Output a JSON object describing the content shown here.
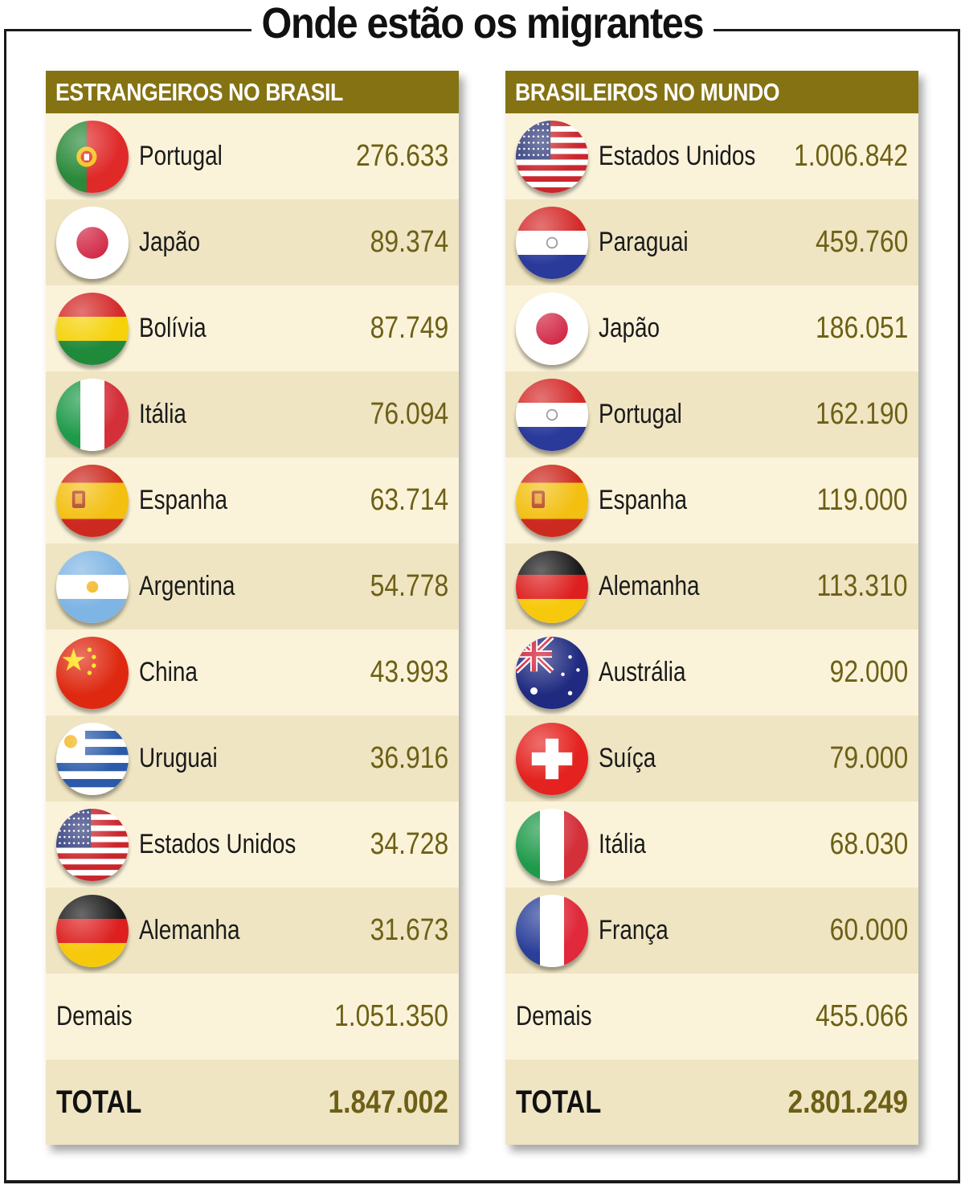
{
  "title": "Onde estão os migrantes",
  "left": {
    "header": "ESTRANGEIROS NO BRASIL",
    "rows": [
      {
        "country": "Portugal",
        "value": "276.633",
        "flag": "portugal-flag-icon"
      },
      {
        "country": "Japão",
        "value": "89.374",
        "flag": "japan-flag-icon"
      },
      {
        "country": "Bolívia",
        "value": "87.749",
        "flag": "bolivia-flag-icon"
      },
      {
        "country": "Itália",
        "value": "76.094",
        "flag": "italy-flag-icon"
      },
      {
        "country": "Espanha",
        "value": "63.714",
        "flag": "spain-flag-icon"
      },
      {
        "country": "Argentina",
        "value": "54.778",
        "flag": "argentina-flag-icon"
      },
      {
        "country": "China",
        "value": "43.993",
        "flag": "china-flag-icon"
      },
      {
        "country": "Uruguai",
        "value": "36.916",
        "flag": "uruguay-flag-icon"
      },
      {
        "country": "Estados Unidos",
        "value": "34.728",
        "flag": "usa-flag-icon"
      },
      {
        "country": "Alemanha",
        "value": "31.673",
        "flag": "germany-flag-icon"
      }
    ],
    "others_label": "Demais",
    "others_value": "1.051.350",
    "total_label": "TOTAL",
    "total_value": "1.847.002"
  },
  "right": {
    "header": "BRASILEIROS NO MUNDO",
    "rows": [
      {
        "country": "Estados Unidos",
        "value": "1.006.842",
        "flag": "usa-flag-icon"
      },
      {
        "country": "Paraguai",
        "value": "459.760",
        "flag": "paraguay-flag-icon"
      },
      {
        "country": "Japão",
        "value": "186.051",
        "flag": "japan-flag-icon"
      },
      {
        "country": "Portugal",
        "value": "162.190",
        "flag": "paraguay-flag-icon"
      },
      {
        "country": "Espanha",
        "value": "119.000",
        "flag": "spain-flag-icon"
      },
      {
        "country": "Alemanha",
        "value": "113.310",
        "flag": "germany-flag-icon"
      },
      {
        "country": "Austrália",
        "value": "92.000",
        "flag": "australia-flag-icon"
      },
      {
        "country": "Suíça",
        "value": "79.000",
        "flag": "switzerland-flag-icon"
      },
      {
        "country": "Itália",
        "value": "68.030",
        "flag": "italy-flag-icon"
      },
      {
        "country": "França",
        "value": "60.000",
        "flag": "france-flag-icon"
      }
    ],
    "others_label": "Demais",
    "others_value": "455.066",
    "total_label": "TOTAL",
    "total_value": "2.801.249"
  },
  "colors": {
    "header_bg": "#857213",
    "row_light": "#fbf3d9",
    "row_dark": "#efe5c3",
    "value_text": "#6d6016"
  }
}
